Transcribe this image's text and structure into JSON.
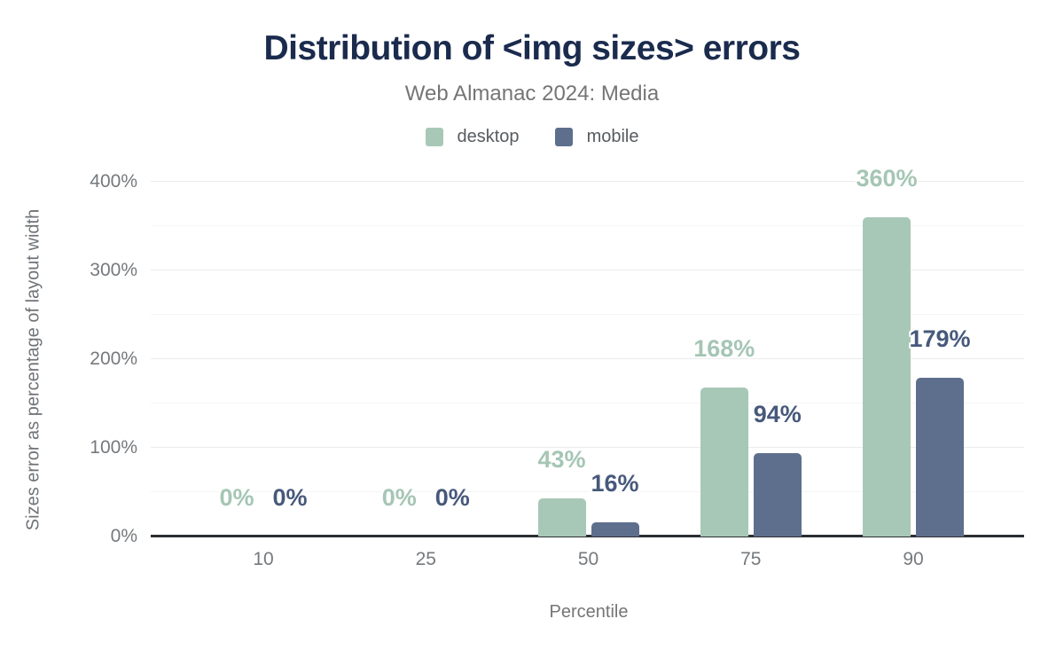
{
  "chart_data": {
    "type": "bar",
    "title": "Distribution of <img sizes> errors",
    "subtitle": "Web Almanac 2024: Media",
    "categories": [
      "10",
      "25",
      "50",
      "75",
      "90"
    ],
    "series": [
      {
        "name": "desktop",
        "values": [
          0,
          0,
          43,
          168,
          360
        ],
        "color": "#a8c8b7",
        "label_color": "#a5c6b4"
      },
      {
        "name": "mobile",
        "values": [
          0,
          0,
          16,
          94,
          179
        ],
        "color": "#5d6f8d",
        "label_color": "#47597b"
      }
    ],
    "value_suffix": "%",
    "xlabel": "Percentile",
    "ylabel": "Sizes error as percentage of layout width",
    "ylim": [
      0,
      400
    ],
    "yticks": [
      0,
      100,
      200,
      300,
      400
    ],
    "minor_grid_step": 50,
    "grid": true,
    "legend_position": "top",
    "colors": {
      "title": "#1a2b4d",
      "subtitle_text": "#757575",
      "tick_text": "#75797d",
      "axis_line": "#2b2f33",
      "gridline_major": "#ebebeb",
      "gridline_minor": "#f5f5f5",
      "background": "#ffffff"
    }
  }
}
